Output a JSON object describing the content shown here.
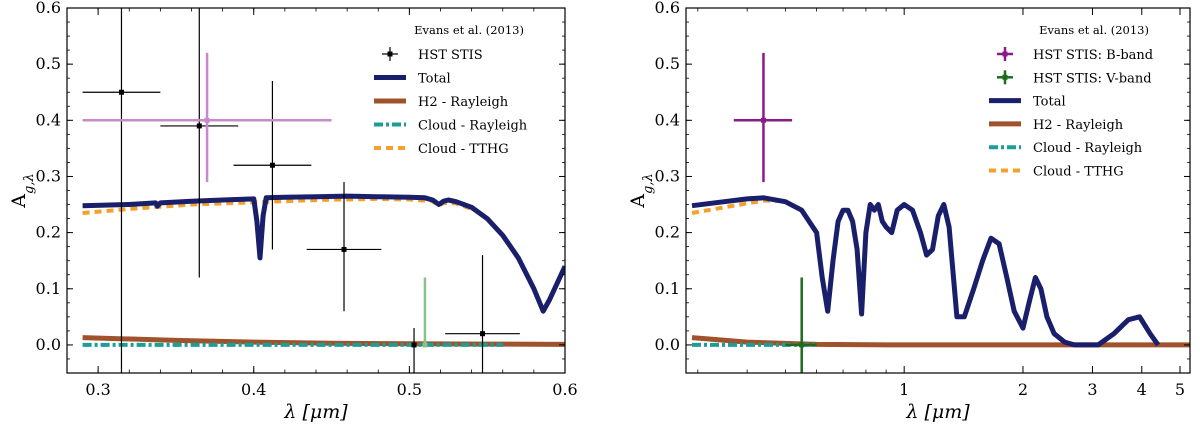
{
  "chart_data": [
    {
      "type": "line",
      "xscale": "linear",
      "xlim": [
        0.28,
        0.6
      ],
      "ylim": [
        -0.05,
        0.6
      ],
      "xticks": [
        0.3,
        0.4,
        0.5,
        0.6
      ],
      "xtick_labels": [
        "0.3",
        "0.4",
        "0.5",
        "0.6"
      ],
      "yticks": [
        0.0,
        0.1,
        0.2,
        0.3,
        0.4,
        0.5,
        0.6
      ],
      "ytick_labels": [
        "0.0",
        "0.1",
        "0.2",
        "0.3",
        "0.4",
        "0.5",
        "0.6"
      ],
      "xlabel": "λ [μm]",
      "ylabel": "Ag,λ",
      "grid": false,
      "legend_placement": "top-right",
      "legend_title": "Evans et al. (2013)",
      "legend": [
        {
          "label": "HST STIS",
          "kind": "errorbar",
          "color": "#000000"
        },
        {
          "label": "Total",
          "kind": "line",
          "color": "#1a1f6b"
        },
        {
          "label": "H2 - Rayleigh",
          "kind": "line",
          "color": "#a0522d"
        },
        {
          "label": "Cloud - Rayleigh",
          "kind": "dashdot",
          "color": "#1a9e96"
        },
        {
          "label": "Cloud - TTHG",
          "kind": "dashed",
          "color": "#f5a02a"
        }
      ],
      "series": [
        {
          "name": "Total",
          "color": "#1a1f6b",
          "style": "solid",
          "x": [
            0.29,
            0.32,
            0.337,
            0.338,
            0.34,
            0.36,
            0.38,
            0.4,
            0.402,
            0.404,
            0.406,
            0.408,
            0.42,
            0.44,
            0.46,
            0.48,
            0.5,
            0.51,
            0.515,
            0.519,
            0.522,
            0.525,
            0.53,
            0.54,
            0.55,
            0.56,
            0.57,
            0.58,
            0.586,
            0.59,
            0.6
          ],
          "y": [
            0.248,
            0.25,
            0.253,
            0.247,
            0.253,
            0.256,
            0.258,
            0.26,
            0.22,
            0.155,
            0.23,
            0.262,
            0.263,
            0.264,
            0.265,
            0.264,
            0.263,
            0.262,
            0.258,
            0.25,
            0.256,
            0.258,
            0.255,
            0.245,
            0.225,
            0.195,
            0.155,
            0.1,
            0.06,
            0.08,
            0.14
          ]
        },
        {
          "name": "Cloud - TTHG",
          "color": "#f5a02a",
          "style": "dashed",
          "x": [
            0.29,
            0.32,
            0.36,
            0.4,
            0.44,
            0.48,
            0.5,
            0.515,
            0.519,
            0.522,
            0.53,
            0.54
          ],
          "y": [
            0.235,
            0.242,
            0.25,
            0.254,
            0.258,
            0.26,
            0.259,
            0.256,
            0.248,
            0.253,
            0.252,
            0.242
          ]
        },
        {
          "name": "H2 - Rayleigh",
          "color": "#a0522d",
          "style": "solid",
          "x": [
            0.29,
            0.35,
            0.4,
            0.45,
            0.5,
            0.55,
            0.6
          ],
          "y": [
            0.013,
            0.008,
            0.005,
            0.003,
            0.002,
            0.0015,
            0.001
          ]
        },
        {
          "name": "Cloud - Rayleigh",
          "color": "#1a9e96",
          "style": "dashdot",
          "x": [
            0.29,
            0.4,
            0.5,
            0.56
          ],
          "y": [
            0.0,
            0.0,
            0.0,
            0.0
          ]
        }
      ],
      "points": [
        {
          "x": 0.315,
          "y": 0.45,
          "xerr": 0.025,
          "yerr_low": 0.6,
          "yerr_high": 0.3,
          "color": "#000000"
        },
        {
          "x": 0.365,
          "y": 0.39,
          "xerr": 0.025,
          "yerr_low": 0.27,
          "yerr_high": 0.3,
          "color": "#000000"
        },
        {
          "x": 0.412,
          "y": 0.32,
          "xerr": 0.025,
          "yerr_low": 0.15,
          "yerr_high": 0.15,
          "color": "#000000"
        },
        {
          "x": 0.458,
          "y": 0.17,
          "xerr": 0.024,
          "yerr_low": 0.11,
          "yerr_high": 0.12,
          "color": "#000000"
        },
        {
          "x": 0.503,
          "y": 0.0,
          "xerr": 0.0,
          "yerr_low": 0.1,
          "yerr_high": 0.03,
          "color": "#000000"
        },
        {
          "x": 0.547,
          "y": 0.02,
          "xerr": 0.024,
          "yerr_low": 0.1,
          "yerr_high": 0.14,
          "color": "#000000"
        },
        {
          "x": 0.37,
          "y": 0.4,
          "xerr_low": 0.08,
          "xerr_high": 0.08,
          "yerr_low": 0.11,
          "yerr_high": 0.12,
          "color": "#c88ac8"
        },
        {
          "x": 0.51,
          "y": 0.0,
          "xerr_low": 0.0,
          "xerr_high": 0.0,
          "yerr_low": 0.0,
          "yerr_high": 0.12,
          "color": "#86c386"
        }
      ]
    },
    {
      "type": "line",
      "xscale": "log",
      "xlim": [
        0.28,
        5.3
      ],
      "ylim": [
        -0.05,
        0.6
      ],
      "xticks": [
        1,
        2,
        3,
        4,
        5
      ],
      "xtick_labels": [
        "1",
        "2",
        "3",
        "4",
        "5"
      ],
      "yticks": [
        0.0,
        0.1,
        0.2,
        0.3,
        0.4,
        0.5,
        0.6
      ],
      "ytick_labels": [
        "0.0",
        "0.1",
        "0.2",
        "0.3",
        "0.4",
        "0.5",
        "0.6"
      ],
      "xlabel": "λ [μm]",
      "ylabel": "Ag,λ",
      "grid": false,
      "legend_placement": "top-right",
      "legend_title": "Evans et al. (2013)",
      "legend": [
        {
          "label": "HST STIS: B-band",
          "kind": "errorbar",
          "color": "#8b1a8b"
        },
        {
          "label": "HST STIS: V-band",
          "kind": "errorbar",
          "color": "#1e6b1e"
        },
        {
          "label": "Total",
          "kind": "line",
          "color": "#1a1f6b"
        },
        {
          "label": "H2 - Rayleigh",
          "kind": "line",
          "color": "#a0522d"
        },
        {
          "label": "Cloud - Rayleigh",
          "kind": "dashdot",
          "color": "#1a9e96"
        },
        {
          "label": "Cloud - TTHG",
          "kind": "dashed",
          "color": "#f5a02a"
        }
      ],
      "series": [
        {
          "name": "Total",
          "color": "#1a1f6b",
          "style": "solid",
          "x": [
            0.29,
            0.35,
            0.4,
            0.44,
            0.5,
            0.55,
            0.6,
            0.62,
            0.64,
            0.66,
            0.68,
            0.7,
            0.72,
            0.74,
            0.76,
            0.78,
            0.8,
            0.82,
            0.84,
            0.86,
            0.88,
            0.9,
            0.93,
            0.96,
            1.0,
            1.05,
            1.1,
            1.14,
            1.18,
            1.22,
            1.26,
            1.3,
            1.36,
            1.42,
            1.5,
            1.58,
            1.66,
            1.74,
            1.82,
            1.9,
            2.0,
            2.08,
            2.15,
            2.22,
            2.3,
            2.4,
            2.55,
            2.7,
            2.9,
            3.1,
            3.4,
            3.7,
            3.95,
            4.2,
            4.4
          ],
          "y": [
            0.248,
            0.255,
            0.26,
            0.262,
            0.255,
            0.24,
            0.2,
            0.12,
            0.06,
            0.15,
            0.22,
            0.24,
            0.24,
            0.22,
            0.17,
            0.055,
            0.2,
            0.25,
            0.24,
            0.25,
            0.22,
            0.21,
            0.2,
            0.24,
            0.25,
            0.24,
            0.2,
            0.16,
            0.17,
            0.23,
            0.25,
            0.21,
            0.05,
            0.05,
            0.1,
            0.15,
            0.19,
            0.18,
            0.12,
            0.06,
            0.03,
            0.08,
            0.12,
            0.1,
            0.05,
            0.02,
            0.005,
            0.0,
            0.0,
            0.0,
            0.02,
            0.045,
            0.05,
            0.02,
            0.0
          ]
        },
        {
          "name": "Cloud - TTHG",
          "color": "#f5a02a",
          "style": "dashed",
          "x": [
            0.29,
            0.35,
            0.4,
            0.44,
            0.5
          ],
          "y": [
            0.235,
            0.245,
            0.252,
            0.257,
            0.256
          ]
        },
        {
          "name": "H2 - Rayleigh",
          "color": "#a0522d",
          "style": "solid",
          "x": [
            0.29,
            0.4,
            0.6,
            1.0,
            2.0,
            5.3
          ],
          "y": [
            0.013,
            0.005,
            0.001,
            0.0,
            0.0,
            0.0
          ]
        },
        {
          "name": "Cloud - Rayleigh",
          "color": "#1a9e96",
          "style": "dashdot",
          "x": [
            0.29,
            0.4,
            0.6
          ],
          "y": [
            0.0,
            0.0,
            0.0
          ]
        }
      ],
      "points": [
        {
          "x": 0.44,
          "y": 0.4,
          "xerr_low": 0.07,
          "xerr_high": 0.08,
          "yerr_low": 0.11,
          "yerr_high": 0.12,
          "color": "#8b1a8b"
        },
        {
          "x": 0.55,
          "y": 0.0,
          "xerr_low": 0.05,
          "xerr_high": 0.05,
          "yerr_low": 0.06,
          "yerr_high": 0.12,
          "color": "#1e6b1e"
        }
      ]
    }
  ]
}
